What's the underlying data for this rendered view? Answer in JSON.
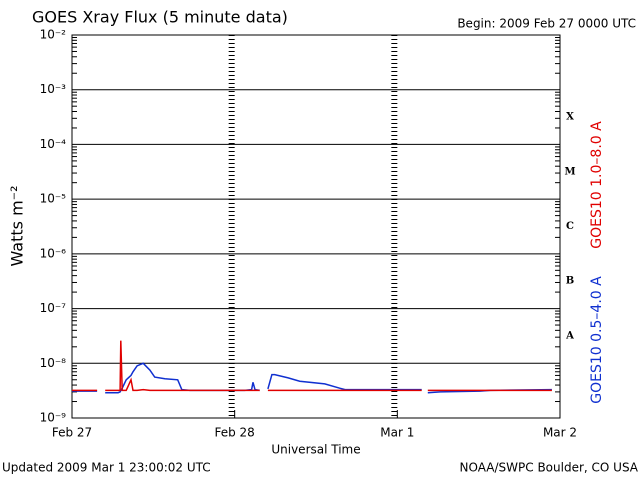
{
  "chart_data": {
    "type": "line",
    "title": "GOES Xray Flux (5 minute data)",
    "subtitle": "Begin:  2009 Feb 27 0000 UTC",
    "xlabel": "Universal Time",
    "ylabel": "Watts m⁻²",
    "footer_left": "Updated 2009 Mar  1 23:00:02 UTC",
    "footer_right": "NOAA/SWPC Boulder, CO USA",
    "log_y": true,
    "grid": true,
    "flare_classes": [
      "A",
      "B",
      "C",
      "M",
      "X"
    ],
    "xlim": [
      0,
      72
    ],
    "xticks": [
      {
        "value": 0,
        "label": "Feb 27"
      },
      {
        "value": 24,
        "label": "Feb 28"
      },
      {
        "value": 48,
        "label": "Mar 1"
      },
      {
        "value": 72,
        "label": "Mar 2"
      }
    ],
    "ylim": [
      1e-09,
      0.01
    ],
    "yticks": [
      {
        "value": 1e-09,
        "label": "10⁻⁹"
      },
      {
        "value": 1e-08,
        "label": "10⁻⁸"
      },
      {
        "value": 1e-07,
        "label": "10⁻⁷"
      },
      {
        "value": 1e-06,
        "label": "10⁻⁶"
      },
      {
        "value": 1e-05,
        "label": "10⁻⁵"
      },
      {
        "value": 0.0001,
        "label": "10⁻⁴"
      },
      {
        "value": 0.001,
        "label": "10⁻³"
      },
      {
        "value": 0.01,
        "label": "10⁻²"
      }
    ],
    "x": [
      0,
      3.7,
      4.1,
      4.9,
      6.8,
      7.1,
      7.2,
      7.4,
      8.0,
      8.7,
      9.0,
      9.6,
      10.5,
      11.5,
      12.2,
      13.7,
      15.6,
      16.2,
      17.4,
      21.8,
      25.5,
      26.5,
      26.7,
      27.0,
      27.7,
      28.3,
      28.9,
      29.5,
      29.9,
      31.9,
      33.6,
      37.3,
      39.5,
      40.3,
      45.4,
      51.6,
      52.1,
      52.5,
      54.3,
      60.2,
      61.7,
      70.8
    ],
    "series": [
      {
        "name": "GOES10 1.0–8.0 A",
        "color": "#e00000",
        "values": [
          3.2e-09,
          3.2e-09,
          null,
          3.2e-09,
          3.2e-09,
          3.2e-09,
          2.6e-08,
          3.2e-09,
          3.2e-09,
          5e-09,
          3.2e-09,
          3.2e-09,
          3.3e-09,
          3.2e-09,
          3.2e-09,
          3.2e-09,
          3.2e-09,
          3.2e-09,
          3.2e-09,
          3.2e-09,
          3.2e-09,
          3.2e-09,
          3.2e-09,
          3.2e-09,
          3.2e-09,
          null,
          3.2e-09,
          3.2e-09,
          3.2e-09,
          3.2e-09,
          3.2e-09,
          3.2e-09,
          3.2e-09,
          3.2e-09,
          3.2e-09,
          3.2e-09,
          null,
          3.2e-09,
          3.2e-09,
          3.2e-09,
          3.2e-09,
          3.2e-09
        ]
      },
      {
        "name": "GOES10 0.5–4.0 A",
        "color": "#1030d0",
        "values": [
          3.1e-09,
          3.1e-09,
          null,
          2.9e-09,
          2.9e-09,
          3e-09,
          3.2e-09,
          3.5e-09,
          5e-09,
          6e-09,
          7e-09,
          9e-09,
          1e-08,
          7.5e-09,
          5.6e-09,
          5.2e-09,
          5e-09,
          3.3e-09,
          3.2e-09,
          3.2e-09,
          3.2e-09,
          3.3e-09,
          4.5e-09,
          3.3e-09,
          3.2e-09,
          null,
          3.4e-09,
          6.2e-09,
          6.2e-09,
          5.4e-09,
          4.7e-09,
          4.2e-09,
          3.5e-09,
          3.3e-09,
          3.3e-09,
          3.3e-09,
          null,
          2.9e-09,
          3e-09,
          3.1e-09,
          3.2e-09,
          3.3e-09
        ]
      }
    ]
  }
}
